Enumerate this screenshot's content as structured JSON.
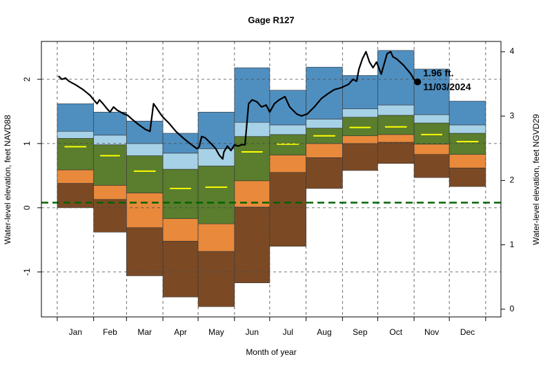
{
  "chart_data": {
    "type": "percentile-bands",
    "title": "Gage R127",
    "xlabel": "Month of year",
    "ylabel": "Water-level elevation, feet NAVD88",
    "y2label": "Water-level elevation, feet NGVD29",
    "categories": [
      "Jan",
      "Feb",
      "Mar",
      "Apr",
      "May",
      "Jun",
      "Jul",
      "Aug",
      "Sep",
      "Oct",
      "Nov",
      "Dec"
    ],
    "xlim": [
      -13.5,
      378
    ],
    "xticks": [
      0,
      31,
      59,
      90,
      120,
      151,
      181,
      212,
      243,
      273,
      304,
      334,
      365
    ],
    "ylim": [
      -1.7,
      2.59
    ],
    "yticks": [
      -1,
      0,
      1,
      2
    ],
    "y2lim": [
      -0.12,
      4.16
    ],
    "y2ticks": [
      0,
      1,
      2,
      3,
      4
    ],
    "grid": true,
    "levels": [
      [
        0.0,
        -0.38,
        -1.06,
        -1.39,
        -1.54,
        -1.17,
        -0.6,
        0.3,
        0.58,
        0.69,
        0.47,
        0.33
      ],
      [
        0.38,
        0.13,
        -0.31,
        -0.52,
        -0.68,
        0.01,
        0.55,
        0.78,
        1.0,
        1.02,
        0.83,
        0.62
      ],
      [
        0.59,
        0.35,
        0.23,
        -0.17,
        -0.25,
        0.42,
        0.82,
        1.0,
        1.12,
        1.14,
        0.99,
        0.83
      ],
      [
        1.08,
        0.98,
        0.81,
        0.6,
        0.65,
        1.11,
        1.14,
        1.24,
        1.41,
        1.44,
        1.32,
        1.16
      ],
      [
        1.19,
        1.13,
        1.0,
        0.85,
        0.92,
        1.33,
        1.29,
        1.38,
        1.54,
        1.6,
        1.45,
        1.29
      ],
      [
        1.62,
        1.49,
        1.35,
        1.16,
        1.49,
        2.18,
        1.83,
        2.19,
        2.06,
        2.45,
        2.16,
        1.66
      ]
    ],
    "band_colors": [
      "#7b4a25",
      "#e8893b",
      "#5a7d2e",
      "#a6d1e6",
      "#4f8fc0"
    ],
    "median": {
      "color": "#ffff00",
      "values": [
        0.95,
        0.81,
        0.57,
        0.3,
        0.32,
        0.87,
        0.99,
        1.12,
        1.25,
        1.26,
        1.14,
        1.03
      ]
    },
    "reference_line": {
      "value": 0.08,
      "color": "#006400"
    },
    "line": {
      "color": "#000000",
      "x": [
        1,
        4,
        7,
        10,
        16,
        22,
        28,
        31,
        34,
        36,
        39,
        42,
        45,
        48,
        51,
        54,
        57,
        60,
        63,
        69,
        75,
        79,
        82,
        84,
        88,
        90,
        95,
        101,
        107,
        113,
        119,
        121,
        123,
        126,
        131,
        135,
        138,
        141,
        142,
        145,
        148,
        151,
        154,
        157,
        160,
        163,
        166,
        170,
        174,
        178,
        181,
        185,
        189,
        194,
        198,
        204,
        208,
        213,
        219,
        225,
        231,
        236,
        242,
        248,
        252,
        255,
        257,
        260,
        263,
        266,
        269,
        272,
        276,
        281,
        284,
        286,
        289,
        295,
        301,
        304,
        307
      ],
      "values": [
        2.05,
        2.0,
        2.02,
        1.97,
        1.91,
        1.84,
        1.75,
        1.68,
        1.62,
        1.68,
        1.62,
        1.55,
        1.49,
        1.57,
        1.52,
        1.49,
        1.46,
        1.44,
        1.39,
        1.3,
        1.22,
        1.19,
        1.62,
        1.57,
        1.46,
        1.41,
        1.32,
        1.19,
        1.09,
        1.0,
        0.92,
        0.95,
        1.11,
        1.09,
        1.0,
        0.92,
        0.82,
        0.76,
        0.87,
        0.96,
        0.89,
        0.98,
        0.96,
        0.98,
        0.98,
        1.62,
        1.68,
        1.65,
        1.57,
        1.6,
        1.49,
        1.62,
        1.68,
        1.73,
        1.57,
        1.46,
        1.43,
        1.46,
        1.57,
        1.7,
        1.78,
        1.84,
        1.87,
        1.92,
        2.0,
        1.97,
        2.16,
        2.32,
        2.43,
        2.27,
        2.18,
        2.27,
        2.08,
        2.4,
        2.43,
        2.35,
        2.32,
        2.22,
        2.09,
        2.0,
        1.96
      ]
    },
    "current": {
      "x": 307,
      "value": 1.96,
      "label": "1.96 ft.",
      "date": "11/03/2024"
    }
  }
}
